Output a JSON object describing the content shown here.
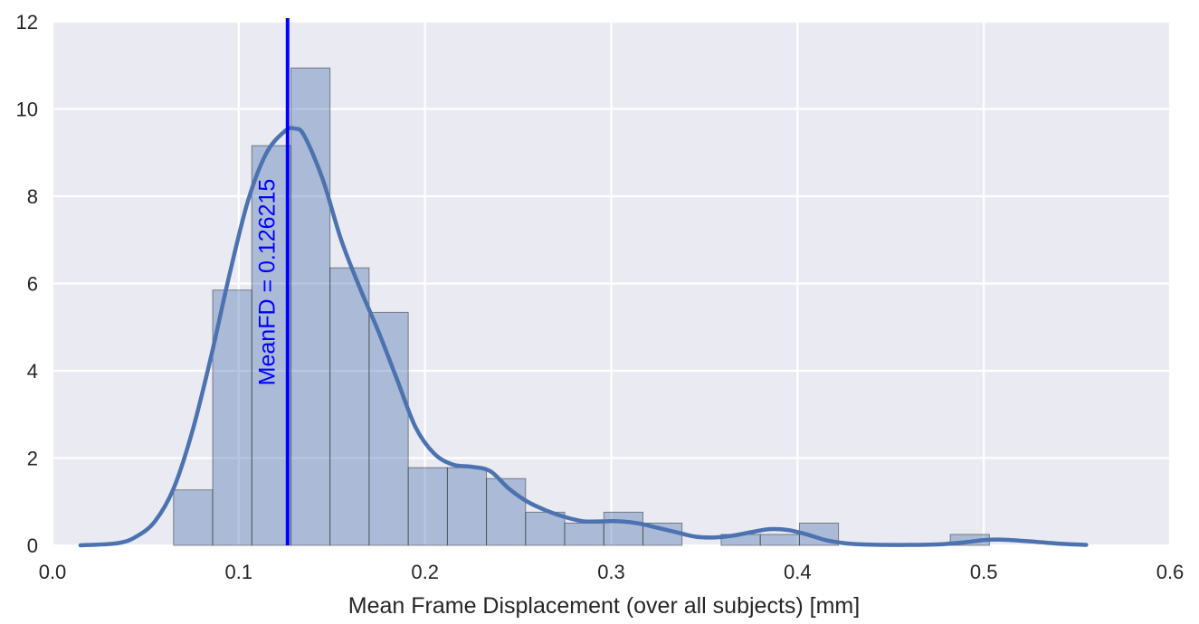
{
  "chart_data": {
    "type": "bar",
    "subtype": "histogram with kde",
    "title": "",
    "xlabel": "Mean Frame Displacement (over all subjects) [mm]",
    "ylabel": "",
    "xlim": [
      0.0,
      0.6
    ],
    "ylim": [
      0,
      12
    ],
    "x_ticks": [
      "0.0",
      "0.1",
      "0.2",
      "0.3",
      "0.4",
      "0.5",
      "0.6"
    ],
    "y_ticks": [
      "0",
      "2",
      "4",
      "6",
      "8",
      "10",
      "12"
    ],
    "grid": true,
    "background": "#eaeaf2",
    "bar_color": "#4c72b0",
    "kde_color": "#4c72b0",
    "bins": [
      {
        "x0": 0.065,
        "x1": 0.086,
        "count": 1.27
      },
      {
        "x0": 0.086,
        "x1": 0.107,
        "count": 5.85
      },
      {
        "x0": 0.107,
        "x1": 0.128,
        "count": 9.16
      },
      {
        "x0": 0.128,
        "x1": 0.149,
        "count": 10.94
      },
      {
        "x0": 0.149,
        "x1": 0.17,
        "count": 6.36
      },
      {
        "x0": 0.17,
        "x1": 0.191,
        "count": 5.34
      },
      {
        "x0": 0.191,
        "x1": 0.212,
        "count": 1.78
      },
      {
        "x0": 0.212,
        "x1": 0.233,
        "count": 1.78
      },
      {
        "x0": 0.233,
        "x1": 0.254,
        "count": 1.53
      },
      {
        "x0": 0.254,
        "x1": 0.275,
        "count": 0.76
      },
      {
        "x0": 0.275,
        "x1": 0.296,
        "count": 0.51
      },
      {
        "x0": 0.296,
        "x1": 0.317,
        "count": 0.76
      },
      {
        "x0": 0.317,
        "x1": 0.338,
        "count": 0.51
      },
      {
        "x0": 0.338,
        "x1": 0.359,
        "count": 0
      },
      {
        "x0": 0.359,
        "x1": 0.38,
        "count": 0.25
      },
      {
        "x0": 0.38,
        "x1": 0.401,
        "count": 0.25
      },
      {
        "x0": 0.401,
        "x1": 0.422,
        "count": 0.51
      },
      {
        "x0": 0.482,
        "x1": 0.503,
        "count": 0.25
      }
    ],
    "kde": {
      "x": [
        0.015,
        0.035,
        0.045,
        0.055,
        0.065,
        0.075,
        0.085,
        0.095,
        0.105,
        0.115,
        0.125,
        0.13,
        0.135,
        0.145,
        0.155,
        0.165,
        0.175,
        0.185,
        0.195,
        0.205,
        0.215,
        0.225,
        0.235,
        0.245,
        0.255,
        0.265,
        0.275,
        0.285,
        0.295,
        0.305,
        0.315,
        0.325,
        0.335,
        0.345,
        0.355,
        0.365,
        0.375,
        0.385,
        0.395,
        0.405,
        0.415,
        0.425,
        0.435,
        0.445,
        0.46,
        0.475,
        0.49,
        0.5,
        0.51,
        0.525,
        0.54,
        0.555
      ],
      "y": [
        0,
        0.05,
        0.2,
        0.55,
        1.3,
        2.6,
        4.3,
        6.2,
        7.9,
        9.0,
        9.5,
        9.55,
        9.4,
        8.4,
        7.0,
        5.9,
        4.9,
        3.8,
        2.7,
        2.1,
        1.85,
        1.8,
        1.7,
        1.3,
        1.0,
        0.8,
        0.65,
        0.55,
        0.55,
        0.55,
        0.5,
        0.4,
        0.3,
        0.2,
        0.18,
        0.22,
        0.3,
        0.37,
        0.35,
        0.25,
        0.12,
        0.05,
        0.02,
        0.01,
        0.01,
        0.02,
        0.07,
        0.12,
        0.13,
        0.09,
        0.04,
        0.01
      ]
    },
    "vline": {
      "x": 0.126215,
      "color": "#0000ff",
      "label": "MeanFD = 0.126215"
    }
  }
}
